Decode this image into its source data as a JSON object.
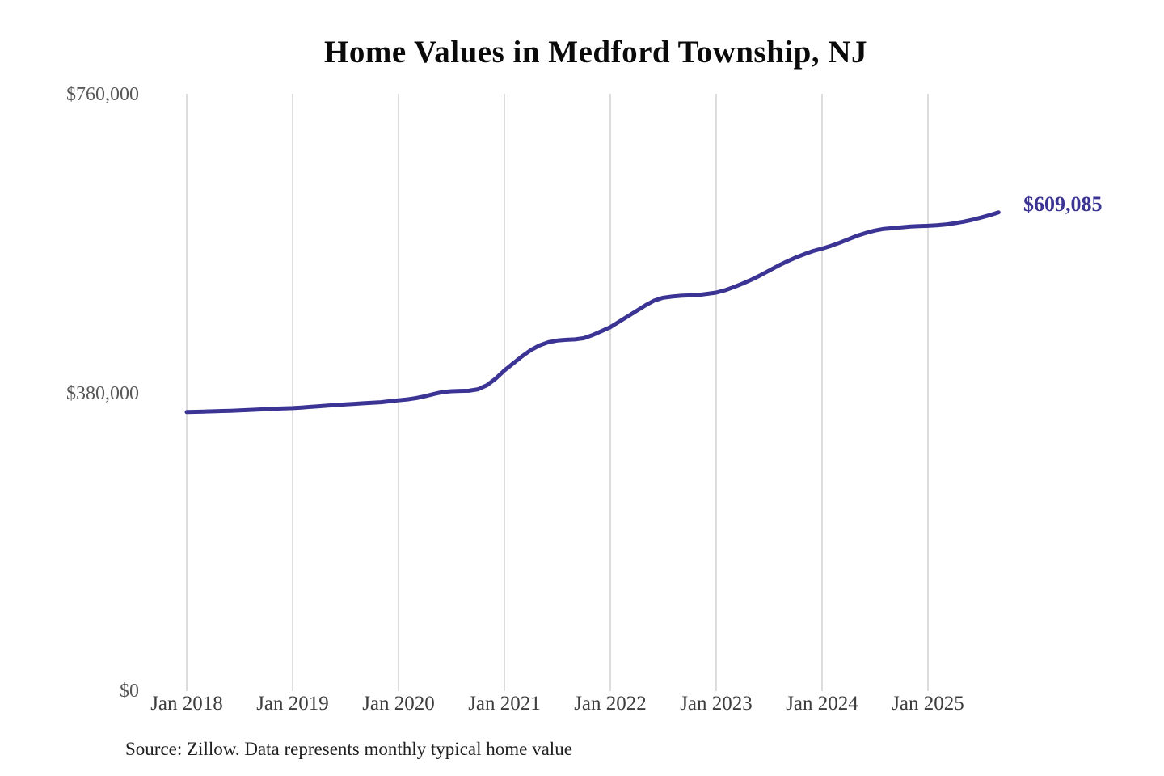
{
  "title": "Home Values in Medford Township, NJ",
  "end_label": "$609,085",
  "source_note": "Source: Zillow. Data represents monthly typical home value",
  "colors": {
    "line": "#3b3494",
    "end_label": "#3b3494",
    "grid": "#c9c9c9",
    "y_axis_text": "#595959",
    "x_axis_text": "#3d3d3d",
    "title_text": "#0a0a0a",
    "source_text": "#1f1f1f",
    "background": "#ffffff"
  },
  "y_axis": {
    "ticks": [
      {
        "label": "$0",
        "value": 0
      },
      {
        "label": "$380,000",
        "value": 380000
      },
      {
        "label": "$760,000",
        "value": 760000
      }
    ]
  },
  "x_axis": {
    "ticks": [
      "Jan 2018",
      "Jan 2019",
      "Jan 2020",
      "Jan 2021",
      "Jan 2022",
      "Jan 2023",
      "Jan 2024",
      "Jan 2025"
    ]
  },
  "chart_data": {
    "type": "line",
    "title": "Home Values in Medford Township, NJ",
    "series_name": "Monthly typical home value (USD)",
    "frequency": "monthly",
    "x_start": "Jan 2018",
    "x_end": "Sep 2025",
    "ylim": [
      0,
      760000
    ],
    "y_tick_values": [
      0,
      380000,
      760000
    ],
    "grid": "vertical-only",
    "legend": "none",
    "final_value": 609085,
    "months": [
      "Jan 2018",
      "Feb 2018",
      "Mar 2018",
      "Apr 2018",
      "May 2018",
      "Jun 2018",
      "Jul 2018",
      "Aug 2018",
      "Sep 2018",
      "Oct 2018",
      "Nov 2018",
      "Dec 2018",
      "Jan 2019",
      "Feb 2019",
      "Mar 2019",
      "Apr 2019",
      "May 2019",
      "Jun 2019",
      "Jul 2019",
      "Aug 2019",
      "Sep 2019",
      "Oct 2019",
      "Nov 2019",
      "Dec 2019",
      "Jan 2020",
      "Feb 2020",
      "Mar 2020",
      "Apr 2020",
      "May 2020",
      "Jun 2020",
      "Jul 2020",
      "Aug 2020",
      "Sep 2020",
      "Oct 2020",
      "Nov 2020",
      "Dec 2020",
      "Jan 2021",
      "Feb 2021",
      "Mar 2021",
      "Apr 2021",
      "May 2021",
      "Jun 2021",
      "Jul 2021",
      "Aug 2021",
      "Sep 2021",
      "Oct 2021",
      "Nov 2021",
      "Dec 2021",
      "Jan 2022",
      "Feb 2022",
      "Mar 2022",
      "Apr 2022",
      "May 2022",
      "Jun 2022",
      "Jul 2022",
      "Aug 2022",
      "Sep 2022",
      "Oct 2022",
      "Nov 2022",
      "Dec 2022",
      "Jan 2023",
      "Feb 2023",
      "Mar 2023",
      "Apr 2023",
      "May 2023",
      "Jun 2023",
      "Jul 2023",
      "Aug 2023",
      "Sep 2023",
      "Oct 2023",
      "Nov 2023",
      "Dec 2023",
      "Jan 2024",
      "Feb 2024",
      "Mar 2024",
      "Apr 2024",
      "May 2024",
      "Jun 2024",
      "Jul 2024",
      "Aug 2024",
      "Sep 2024",
      "Oct 2024",
      "Nov 2024",
      "Dec 2024",
      "Jan 2025",
      "Feb 2025",
      "Mar 2025",
      "Apr 2025",
      "May 2025",
      "Jun 2025",
      "Jul 2025",
      "Aug 2025",
      "Sep 2025"
    ],
    "values": [
      355000,
      355300,
      355600,
      355900,
      356300,
      356700,
      357100,
      357600,
      358200,
      358800,
      359300,
      359700,
      360000,
      360800,
      361600,
      362400,
      363200,
      364000,
      364800,
      365500,
      366200,
      366900,
      367600,
      368800,
      370000,
      371200,
      372800,
      375200,
      378000,
      380500,
      381500,
      382000,
      382200,
      384000,
      389000,
      397500,
      408000,
      417000,
      426000,
      434000,
      440000,
      444000,
      446000,
      447000,
      447500,
      449000,
      453000,
      458000,
      463000,
      470000,
      477000,
      484000,
      491000,
      497000,
      500500,
      502000,
      503000,
      503500,
      504000,
      505500,
      507000,
      510000,
      514000,
      518500,
      523500,
      529000,
      535000,
      541000,
      546500,
      551500,
      556000,
      560000,
      563000,
      566500,
      570500,
      575000,
      579500,
      583000,
      586000,
      588000,
      589000,
      590000,
      591000,
      591500,
      592000,
      592600,
      593600,
      595200,
      597200,
      599600,
      602400,
      605500,
      609085
    ]
  }
}
